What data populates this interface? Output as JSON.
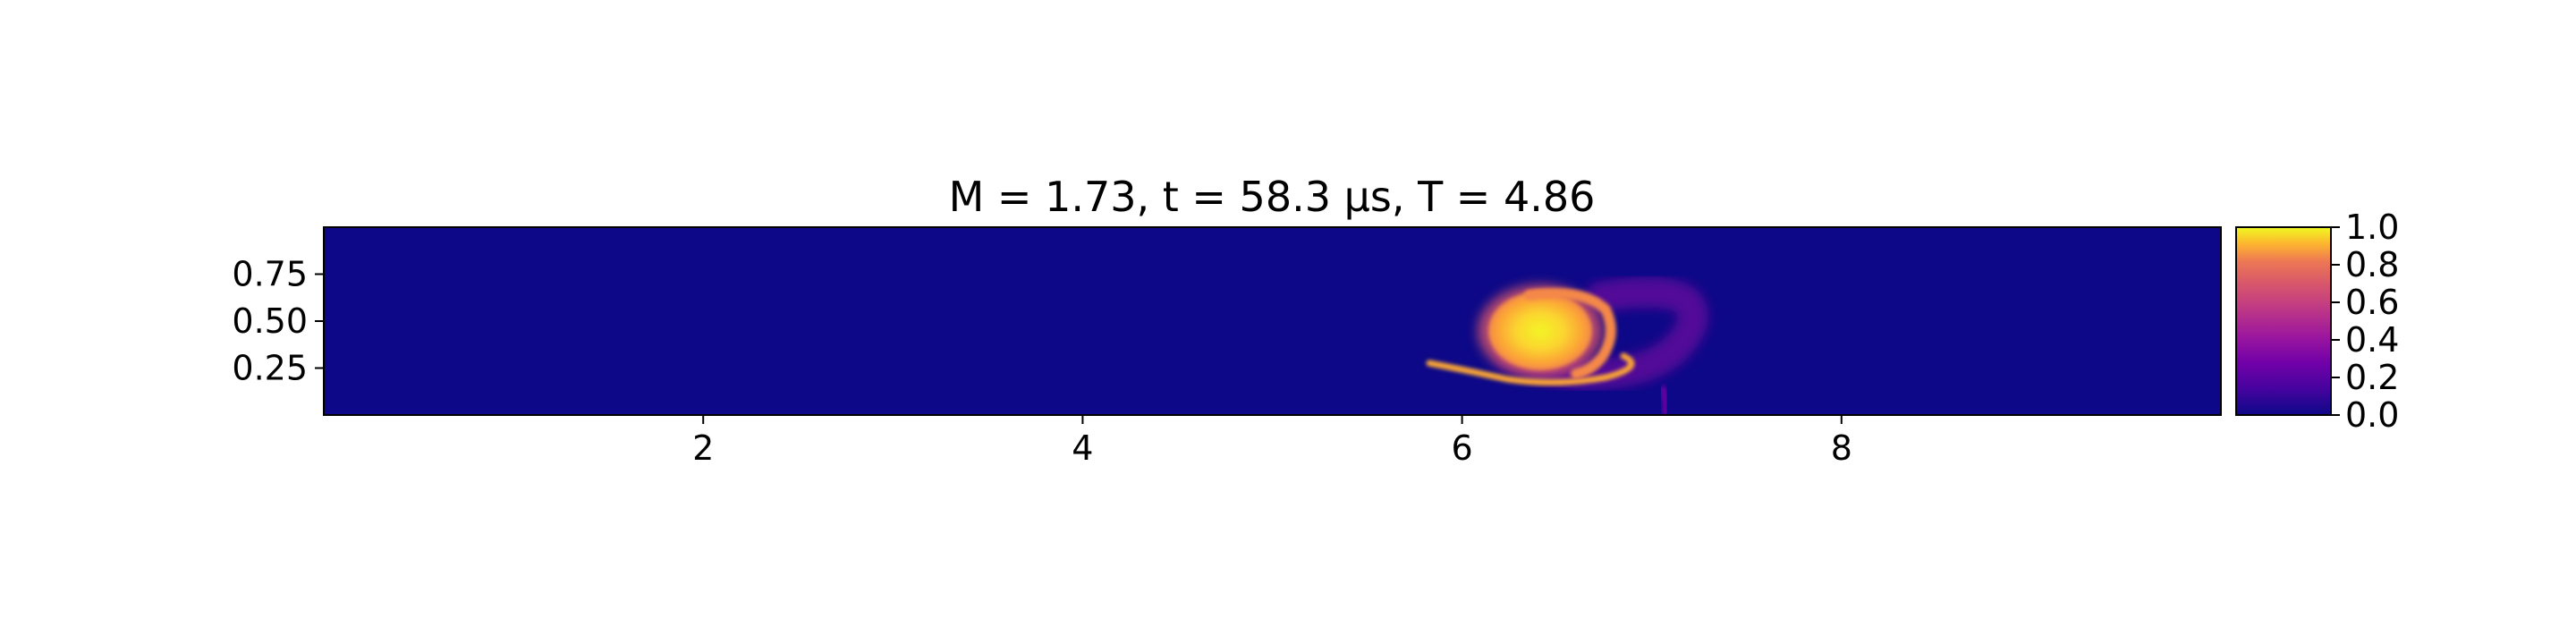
{
  "title": "M = 1.73, t = 58.3 μs, T = 4.86",
  "chart_data": {
    "type": "heatmap",
    "title": "M = 1.73, t = 58.3 μs, T = 4.86",
    "xlabel": "",
    "ylabel": "",
    "xlim": [
      0,
      10
    ],
    "ylim": [
      0,
      1
    ],
    "x_ticks": [
      2,
      4,
      6,
      8
    ],
    "x_tick_labels": [
      "2",
      "4",
      "6",
      "8"
    ],
    "y_ticks": [
      0.25,
      0.5,
      0.75
    ],
    "y_tick_labels": [
      "0.25",
      "0.50",
      "0.75"
    ],
    "colormap": "plasma",
    "colorbar": {
      "range": [
        0.0,
        1.0
      ],
      "ticks": [
        0.0,
        0.2,
        0.4,
        0.6,
        0.8,
        1.0
      ],
      "tick_labels": [
        "0.0",
        "0.2",
        "0.4",
        "0.6",
        "0.8",
        "1.0"
      ]
    },
    "background_value": 0.0,
    "features": [
      {
        "name": "vortex core",
        "x": 6.4,
        "y": 0.45,
        "rx": 0.28,
        "ry": 0.2,
        "value": 0.95
      },
      {
        "name": "lower trailing filament",
        "x": 6.3,
        "y": 0.22,
        "value": 0.75
      },
      {
        "name": "outer spiral arm",
        "x": 6.7,
        "y": 0.48,
        "value": 0.8
      },
      {
        "name": "faint wall feature",
        "x": 7.05,
        "y": 0.06,
        "value": 0.2
      }
    ],
    "grid": false,
    "legend": "none"
  },
  "colors": {
    "background_field": "#0d0887",
    "axis": "#000000",
    "plasma_stops": [
      "#0d0887",
      "#5302a3",
      "#8b0aa5",
      "#b83289",
      "#db5c68",
      "#f48849",
      "#febd2a",
      "#f0f921"
    ]
  }
}
